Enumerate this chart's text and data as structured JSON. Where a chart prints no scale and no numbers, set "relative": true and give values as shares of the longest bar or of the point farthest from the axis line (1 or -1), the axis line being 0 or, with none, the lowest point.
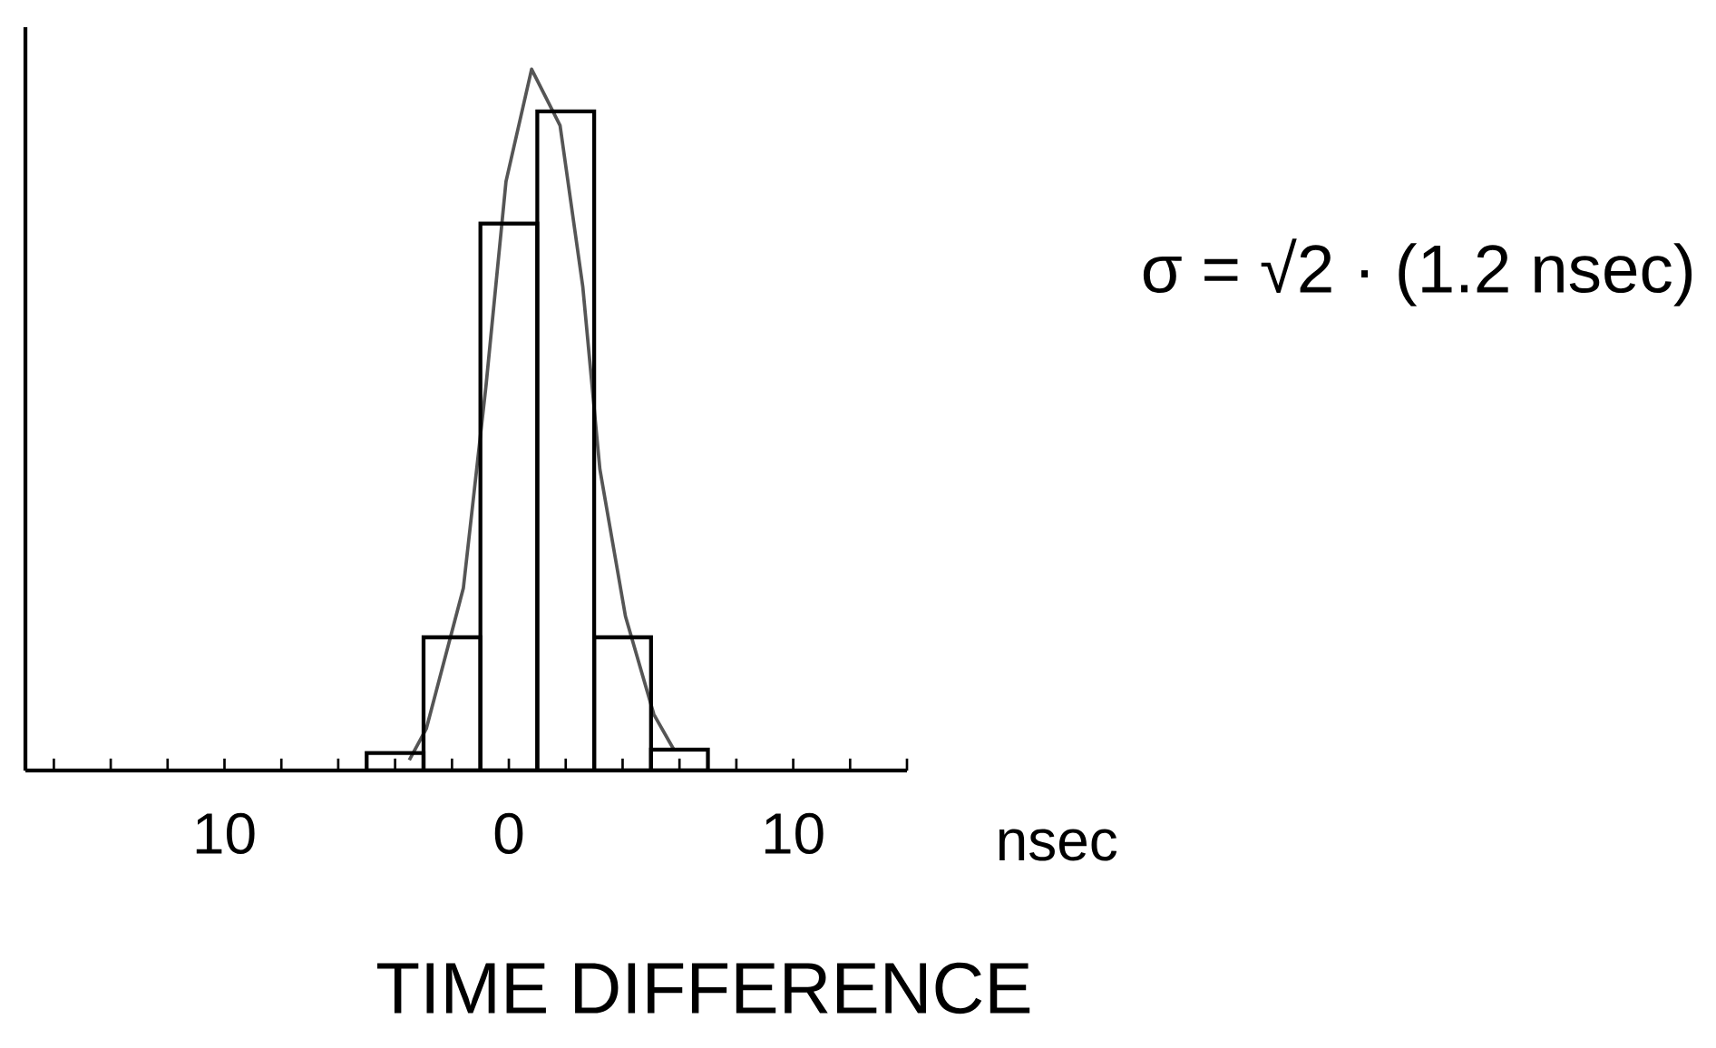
{
  "chart_data": {
    "type": "histogram",
    "relative": true,
    "xlabel": "TIME DIFFERENCE",
    "annotations": [
      "nsec",
      "σ = √2 · (1.2 nsec)"
    ],
    "xlim": [
      -17,
      14
    ],
    "xticks": [
      {
        "value": -16,
        "label": null
      },
      {
        "value": -14,
        "label": null
      },
      {
        "value": -12,
        "label": null
      },
      {
        "value": -10,
        "label": "10"
      },
      {
        "value": -8,
        "label": null
      },
      {
        "value": -6,
        "label": null
      },
      {
        "value": -4,
        "label": null
      },
      {
        "value": -2,
        "label": null
      },
      {
        "value": 0,
        "label": "0"
      },
      {
        "value": 2,
        "label": null
      },
      {
        "value": 4,
        "label": null
      },
      {
        "value": 6,
        "label": null
      },
      {
        "value": 8,
        "label": null
      },
      {
        "value": 10,
        "label": "10"
      },
      {
        "value": 12,
        "label": null
      },
      {
        "value": 14,
        "label": null
      }
    ],
    "series": [
      {
        "color": "#000000",
        "bins": [
          -5,
          -3,
          -1,
          1,
          3,
          5,
          7
        ],
        "values": [
          0.025,
          0.19,
          0.78,
          0.94,
          0.19,
          0.03
        ]
      },
      {
        "type": "line",
        "color": "#555555",
        "marker": "none",
        "x": [
          -3.5,
          -2.9,
          -1.6,
          -0.8,
          -0.1,
          0.8,
          1.8,
          2.6,
          3.2,
          4.1,
          5.1,
          5.8
        ],
        "values": [
          0.015,
          0.06,
          0.26,
          0.55,
          0.84,
          1,
          0.92,
          0.69,
          0.43,
          0.22,
          0.08,
          0.03
        ]
      }
    ]
  }
}
